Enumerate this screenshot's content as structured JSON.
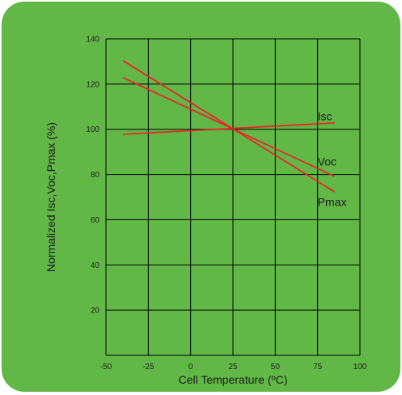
{
  "colors": {
    "panel_background": "#62b846",
    "gridline": "#000000",
    "series_line": "#e8262a"
  },
  "chart_data": {
    "type": "line",
    "xlabel": "Cell Temperature (ºC)",
    "ylabel": "Normalized Isc,Voc,Pmax (%)",
    "xlim": [
      -50,
      100
    ],
    "ylim": [
      0,
      140
    ],
    "xticks": [
      -50,
      -25,
      0,
      25,
      50,
      75,
      100
    ],
    "yticks": [
      20,
      40,
      60,
      80,
      100,
      120,
      140
    ],
    "grid": true,
    "legend": "none",
    "series": [
      {
        "name": "Isc",
        "x": [
          -40,
          85
        ],
        "y": [
          97.8,
          102.8
        ],
        "label_at": [
          75,
          104
        ]
      },
      {
        "name": "Voc",
        "x": [
          -40,
          85
        ],
        "y": [
          122.9,
          79.2
        ],
        "label_at": [
          75,
          84
        ]
      },
      {
        "name": "Pmax",
        "x": [
          -40,
          85
        ],
        "y": [
          130.4,
          72.3
        ],
        "label_at": [
          75,
          66
        ]
      }
    ]
  }
}
